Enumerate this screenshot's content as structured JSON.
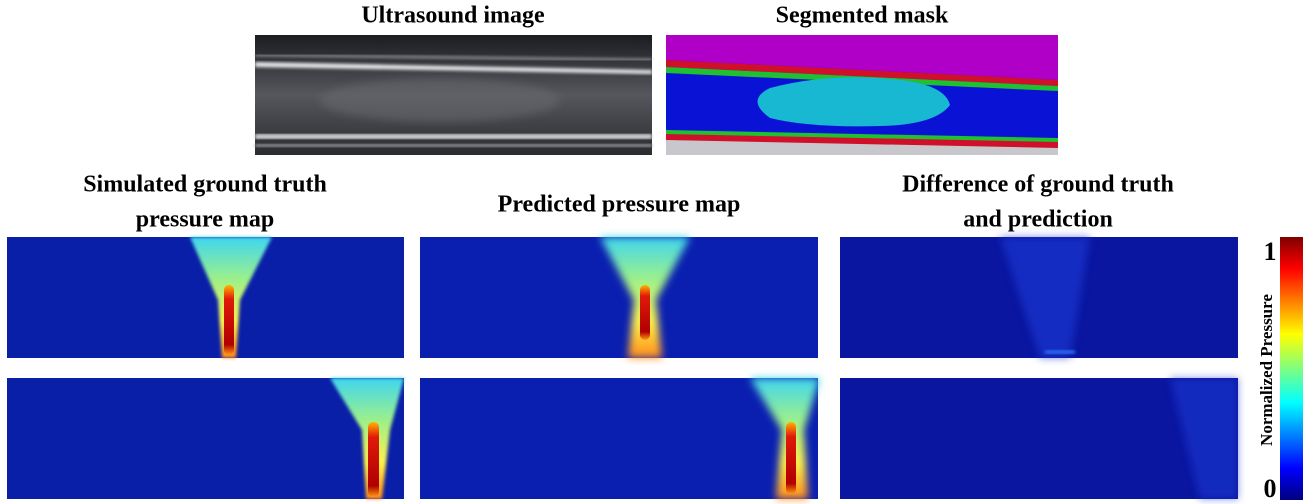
{
  "header": {
    "ultrasound_title": "Ultrasound image",
    "mask_title": "Segmented mask"
  },
  "columns": [
    {
      "title_lines": [
        "Simulated ground truth",
        "pressure map"
      ]
    },
    {
      "title_lines": [
        "Predicted pressure map"
      ]
    },
    {
      "title_lines": [
        "Difference of ground truth",
        "and prediction"
      ]
    }
  ],
  "colorbar": {
    "label": "Normalized Pressure",
    "max": 1,
    "min": 0
  }
}
